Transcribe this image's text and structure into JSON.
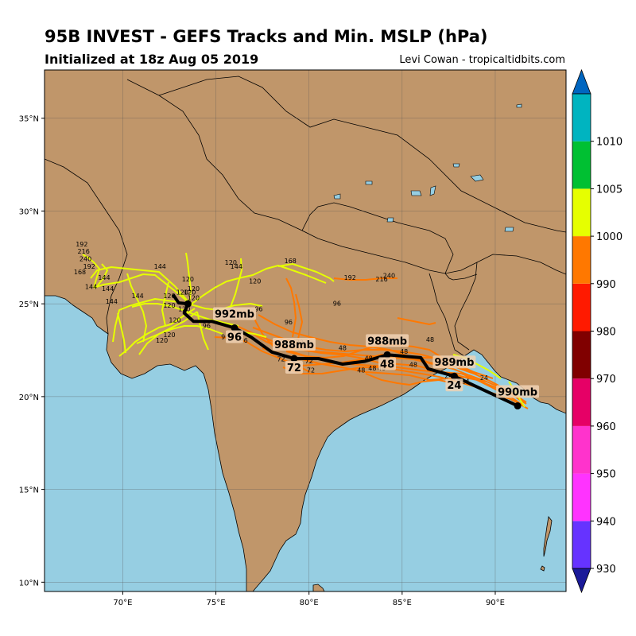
{
  "header": {
    "title": "95B INVEST - GEFS Tracks and Min. MSLP (hPa)",
    "subtitle": "Initialized at 18z Aug 05 2019",
    "credit": "Levi Cowan - tropicaltidbits.com"
  },
  "map": {
    "lon_range": [
      65.8,
      93.8
    ],
    "lat_range": [
      9.5,
      37.6
    ],
    "lon_ticks": [
      {
        "value": 70,
        "label": "70°E"
      },
      {
        "value": 75,
        "label": "75°E"
      },
      {
        "value": 80,
        "label": "80°E"
      },
      {
        "value": 85,
        "label": "85°E"
      },
      {
        "value": 90,
        "label": "90°E"
      }
    ],
    "lat_ticks": [
      {
        "value": 10,
        "label": "10°N"
      },
      {
        "value": 15,
        "label": "15°N"
      },
      {
        "value": 20,
        "label": "20°N"
      },
      {
        "value": 25,
        "label": "25°N"
      },
      {
        "value": 30,
        "label": "30°N"
      },
      {
        "value": 35,
        "label": "35°N"
      }
    ],
    "colors": {
      "land": "#c0966a",
      "ocean": "#96cee2",
      "track_mean": "#000000",
      "track_980_990": "#ff7800",
      "track_990_1000": "#e6ff00",
      "label_box": "#f0d2b4"
    }
  },
  "colorbar": {
    "levels": [
      930,
      940,
      950,
      960,
      970,
      980,
      990,
      1000,
      1005,
      1010
    ],
    "labels": [
      "930",
      "940",
      "950",
      "960",
      "970",
      "980",
      "990",
      "1000",
      "1005",
      "1010"
    ],
    "colors": [
      "#6633ff",
      "#ff33ff",
      "#ff33cc",
      "#e60066",
      "#800000",
      "#ff1a00",
      "#ff7800",
      "#e6ff00",
      "#00c032",
      "#00b4c0"
    ],
    "under_color": "#1a1a99",
    "over_color": "#0066c0"
  },
  "mean_track": {
    "points": [
      {
        "lon": 91.2,
        "lat": 19.5
      },
      {
        "lon": 89.5,
        "lat": 20.3
      },
      {
        "lon": 87.8,
        "lat": 21.1
      },
      {
        "lon": 86.4,
        "lat": 21.5
      },
      {
        "lon": 86.0,
        "lat": 22.1
      },
      {
        "lon": 84.2,
        "lat": 22.25
      },
      {
        "lon": 83.0,
        "lat": 21.9
      },
      {
        "lon": 81.8,
        "lat": 21.75
      },
      {
        "lon": 80.5,
        "lat": 22.05
      },
      {
        "lon": 79.2,
        "lat": 22.05
      },
      {
        "lon": 78.0,
        "lat": 22.4
      },
      {
        "lon": 76.9,
        "lat": 23.2
      },
      {
        "lon": 76.0,
        "lat": 23.7
      },
      {
        "lon": 74.8,
        "lat": 24.05
      },
      {
        "lon": 73.8,
        "lat": 24.05
      },
      {
        "lon": 73.3,
        "lat": 24.5
      },
      {
        "lon": 73.5,
        "lat": 25.0
      },
      {
        "lon": 73.0,
        "lat": 25.05
      },
      {
        "lon": 72.7,
        "lat": 25.5
      }
    ],
    "markers": [
      {
        "lon": 91.2,
        "lat": 19.5,
        "mslp": "990mb",
        "hour": ""
      },
      {
        "lon": 87.8,
        "lat": 21.1,
        "mslp": "989mb",
        "hour": "24"
      },
      {
        "lon": 84.2,
        "lat": 22.25,
        "mslp": "988mb",
        "hour": "48"
      },
      {
        "lon": 79.2,
        "lat": 22.05,
        "mslp": "988mb",
        "hour": "72"
      },
      {
        "lon": 76.0,
        "lat": 23.7,
        "mslp": "992mb",
        "hour": "96"
      },
      {
        "lon": 73.5,
        "lat": 25.0,
        "mslp": "",
        "hour": ""
      }
    ]
  },
  "member_labels": [
    {
      "lon": 77.3,
      "lat": 24.6,
      "text": "96"
    },
    {
      "lon": 78.9,
      "lat": 23.9,
      "text": "96"
    },
    {
      "lon": 81.5,
      "lat": 24.9,
      "text": "96"
    },
    {
      "lon": 75.5,
      "lat": 23.1,
      "text": "96"
    },
    {
      "lon": 74.5,
      "lat": 23.7,
      "text": "96"
    },
    {
      "lon": 76.5,
      "lat": 22.9,
      "text": "96"
    },
    {
      "lon": 79.5,
      "lat": 22.8,
      "text": "72"
    },
    {
      "lon": 78.5,
      "lat": 21.9,
      "text": "72"
    },
    {
      "lon": 80.0,
      "lat": 21.8,
      "text": "72"
    },
    {
      "lon": 80.1,
      "lat": 21.3,
      "text": "72"
    },
    {
      "lon": 81.8,
      "lat": 22.5,
      "text": "48"
    },
    {
      "lon": 82.8,
      "lat": 21.3,
      "text": "48"
    },
    {
      "lon": 83.4,
      "lat": 21.4,
      "text": "48"
    },
    {
      "lon": 83.9,
      "lat": 21.4,
      "text": "48"
    },
    {
      "lon": 83.2,
      "lat": 21.95,
      "text": "48"
    },
    {
      "lon": 84.4,
      "lat": 22.9,
      "text": "48"
    },
    {
      "lon": 85.1,
      "lat": 22.3,
      "text": "48"
    },
    {
      "lon": 86.5,
      "lat": 22.95,
      "text": "48"
    },
    {
      "lon": 85.6,
      "lat": 21.6,
      "text": "48"
    },
    {
      "lon": 89.4,
      "lat": 20.9,
      "text": "24"
    },
    {
      "lon": 87.5,
      "lat": 21.0,
      "text": "24"
    },
    {
      "lon": 88.4,
      "lat": 20.7,
      "text": "24"
    },
    {
      "lon": 72.0,
      "lat": 26.9,
      "text": "144"
    },
    {
      "lon": 69.0,
      "lat": 26.3,
      "text": "144"
    },
    {
      "lon": 68.3,
      "lat": 25.8,
      "text": "144"
    },
    {
      "lon": 69.2,
      "lat": 25.7,
      "text": "144"
    },
    {
      "lon": 69.4,
      "lat": 25.0,
      "text": "144"
    },
    {
      "lon": 70.8,
      "lat": 25.3,
      "text": "144"
    },
    {
      "lon": 72.5,
      "lat": 25.3,
      "text": "120"
    },
    {
      "lon": 73.5,
      "lat": 26.2,
      "text": "120"
    },
    {
      "lon": 73.8,
      "lat": 25.7,
      "text": "120"
    },
    {
      "lon": 73.8,
      "lat": 25.2,
      "text": "120"
    },
    {
      "lon": 72.5,
      "lat": 24.8,
      "text": "120"
    },
    {
      "lon": 72.8,
      "lat": 24.0,
      "text": "120"
    },
    {
      "lon": 72.5,
      "lat": 23.2,
      "text": "120"
    },
    {
      "lon": 72.1,
      "lat": 22.9,
      "text": "120"
    },
    {
      "lon": 75.8,
      "lat": 27.1,
      "text": "120"
    },
    {
      "lon": 77.1,
      "lat": 26.1,
      "text": "120"
    },
    {
      "lon": 76.1,
      "lat": 26.9,
      "text": "144"
    },
    {
      "lon": 73.6,
      "lat": 25.5,
      "text": "120"
    },
    {
      "lon": 73.2,
      "lat": 25.5,
      "text": "120"
    },
    {
      "lon": 73.3,
      "lat": 24.6,
      "text": "120"
    },
    {
      "lon": 79.0,
      "lat": 27.2,
      "text": "168"
    },
    {
      "lon": 82.2,
      "lat": 26.3,
      "text": "192"
    },
    {
      "lon": 83.9,
      "lat": 26.2,
      "text": "216"
    },
    {
      "lon": 84.3,
      "lat": 26.4,
      "text": "240"
    },
    {
      "lon": 67.8,
      "lat": 28.1,
      "text": "192"
    },
    {
      "lon": 67.9,
      "lat": 27.7,
      "text": "216"
    },
    {
      "lon": 68.0,
      "lat": 27.3,
      "text": "240"
    },
    {
      "lon": 68.2,
      "lat": 26.9,
      "text": "192"
    },
    {
      "lon": 67.7,
      "lat": 26.6,
      "text": "168"
    }
  ]
}
